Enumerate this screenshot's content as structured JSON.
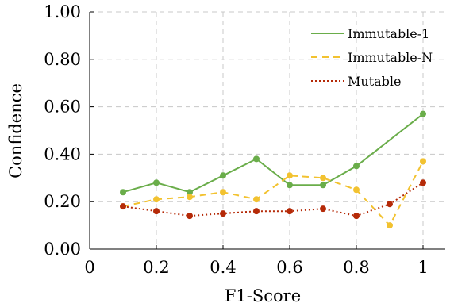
{
  "chart_data": {
    "type": "line",
    "xlabel": "F1-Score",
    "ylabel": "Confidence",
    "xlim": [
      0,
      1.05
    ],
    "ylim": [
      0,
      1.0
    ],
    "x_ticks": [
      0,
      0.2,
      0.4,
      0.6,
      0.8,
      1
    ],
    "x_tick_labels": [
      "0",
      "0.2",
      "0.4",
      "0.6",
      "0.8",
      "1"
    ],
    "y_ticks": [
      0,
      0.2,
      0.4,
      0.6,
      0.8,
      1.0
    ],
    "y_tick_labels": [
      "0.00",
      "0.20",
      "0.40",
      "0.60",
      "0.80",
      "1.00"
    ],
    "grid": true,
    "legend_position": "top-right",
    "x": [
      0.1,
      0.2,
      0.3,
      0.4,
      0.5,
      0.6,
      0.7,
      0.8,
      0.9,
      1.0
    ],
    "series": [
      {
        "name": "Immutable-1",
        "color": "#6aad4a",
        "style": "solid",
        "x": [
          0.1,
          0.2,
          0.3,
          0.4,
          0.5,
          0.6,
          0.7,
          0.8,
          1.0
        ],
        "values": [
          0.24,
          0.28,
          0.24,
          0.31,
          0.38,
          0.27,
          0.27,
          0.35,
          0.57
        ]
      },
      {
        "name": "Immutable-N",
        "color": "#f2c230",
        "style": "dashed",
        "x": [
          0.1,
          0.2,
          0.3,
          0.4,
          0.5,
          0.6,
          0.7,
          0.8,
          0.9,
          1.0
        ],
        "values": [
          0.18,
          0.21,
          0.22,
          0.24,
          0.21,
          0.31,
          0.3,
          0.25,
          0.1,
          0.37
        ]
      },
      {
        "name": "Mutable",
        "color": "#b52a08",
        "style": "dotted",
        "x": [
          0.1,
          0.2,
          0.3,
          0.4,
          0.5,
          0.6,
          0.7,
          0.8,
          0.9,
          1.0
        ],
        "values": [
          0.18,
          0.16,
          0.14,
          0.15,
          0.16,
          0.16,
          0.17,
          0.14,
          0.19,
          0.28
        ]
      }
    ]
  }
}
